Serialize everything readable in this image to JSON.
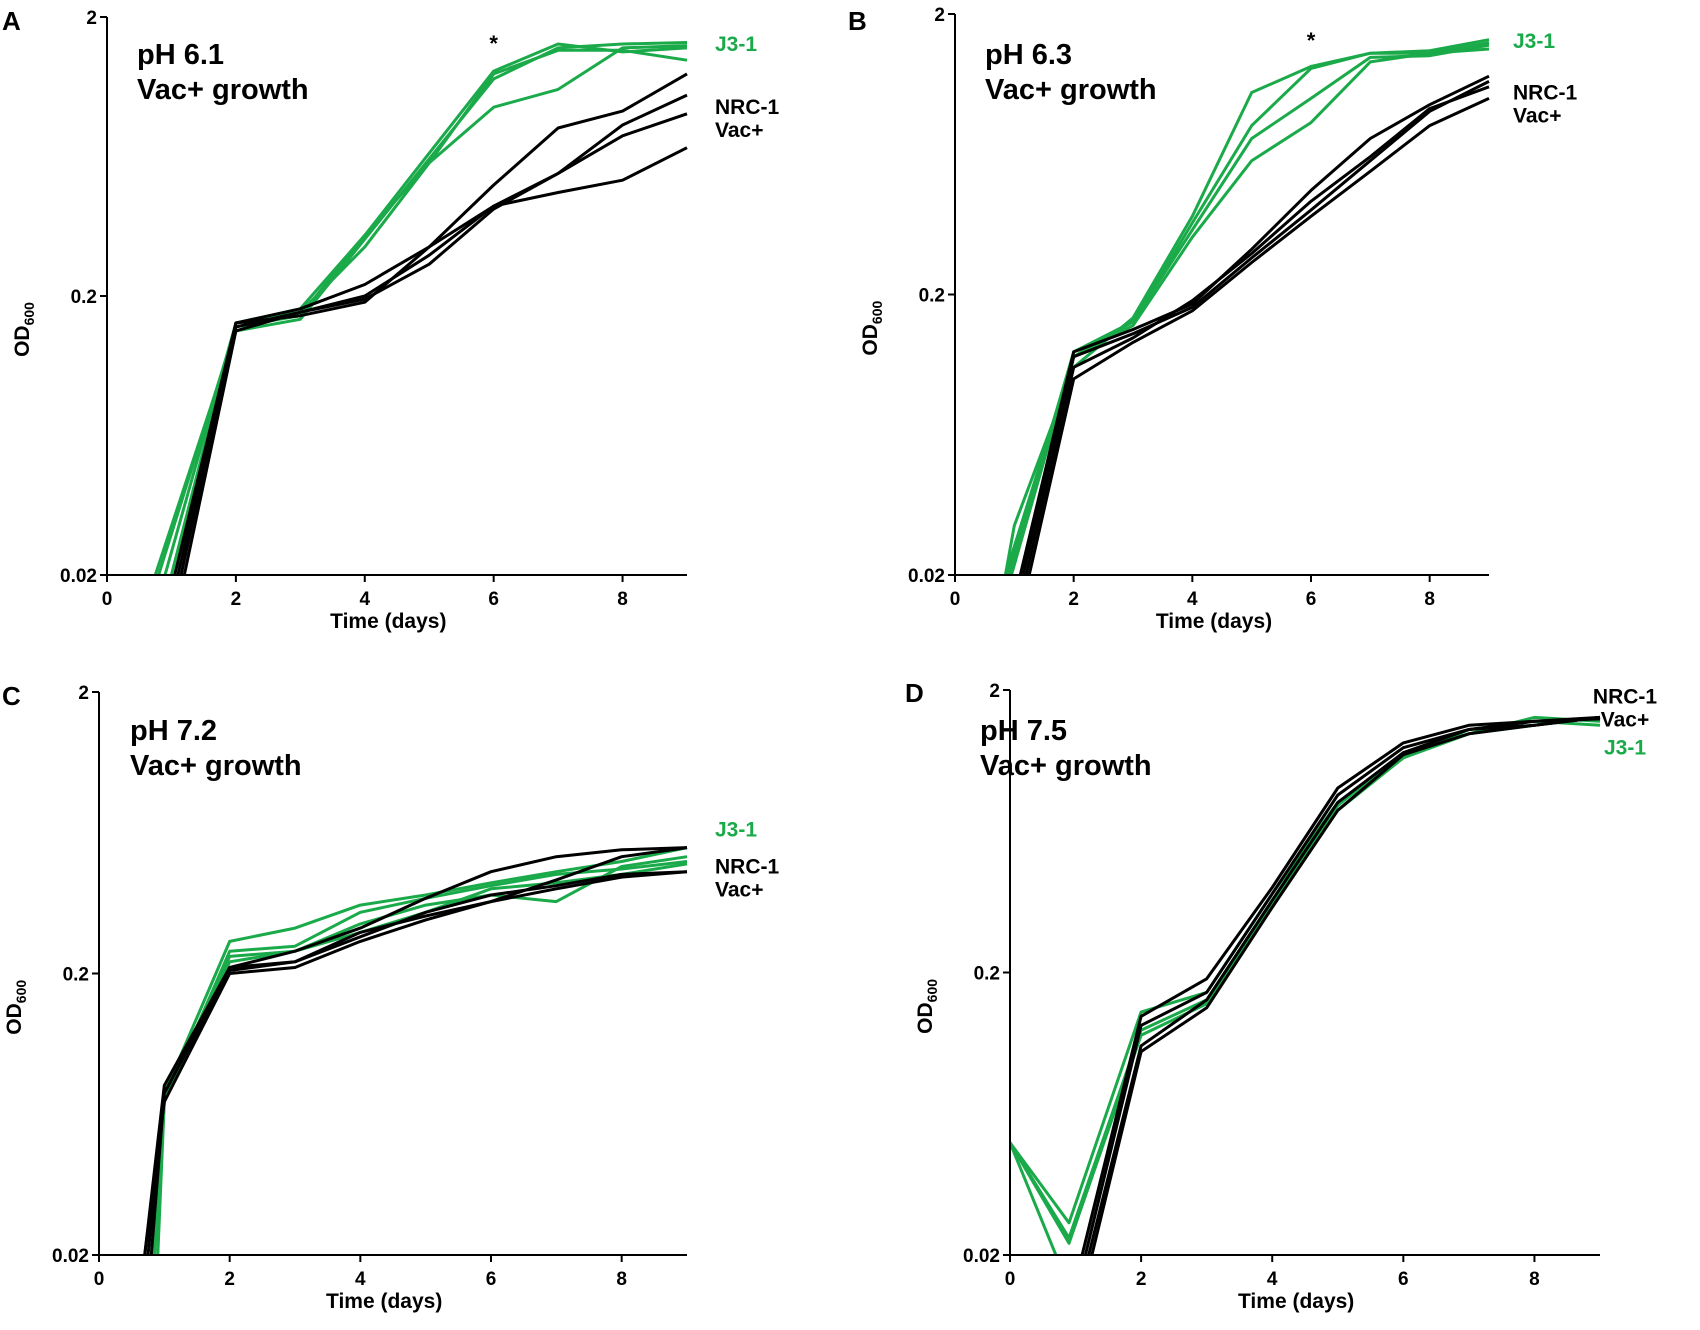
{
  "figure": {
    "panel_letters": [
      "A",
      "B",
      "C",
      "D"
    ]
  },
  "colors": {
    "wt": "#000000",
    "j31": "#1aaa4a",
    "axis": "#000000"
  },
  "chart_data": [
    {
      "panel": "A",
      "type": "line",
      "title_line1": "pH 6.1",
      "title_line2": "Vac+ growth",
      "xlabel": "Time (days)",
      "ylabel_main": "OD",
      "ylabel_sub": "600",
      "xlim": [
        0,
        9
      ],
      "ylim": [
        0.02,
        2
      ],
      "yscale": "log",
      "xticks": [
        0,
        2,
        4,
        6,
        8
      ],
      "xtick_labels": [
        "0",
        "2",
        "4",
        "6",
        "8"
      ],
      "yticks": [
        0.02,
        0.2,
        2
      ],
      "ytick_labels": [
        "0.02",
        "0.2",
        "2"
      ],
      "annotation": {
        "text": "*",
        "x": 6
      },
      "legend": [
        {
          "lines": [
            "J3-1"
          ],
          "color": "j31",
          "y_value": 1.6
        },
        {
          "lines": [
            "NRC-1",
            "Vac+"
          ],
          "color": "wt",
          "y_value": 0.95
        }
      ],
      "series": [
        {
          "name": "J3-1",
          "color": "j31",
          "x": [
            0.75,
            2,
            3,
            4,
            5,
            6,
            7,
            8,
            9
          ],
          "values": [
            0.02,
            0.15,
            0.165,
            0.32,
            0.62,
            1.2,
            1.55,
            1.6,
            1.62
          ]
        },
        {
          "name": "J3-1",
          "color": "j31",
          "x": [
            0.8,
            2,
            3,
            4,
            5,
            6,
            7,
            8,
            9
          ],
          "values": [
            0.02,
            0.155,
            0.17,
            0.33,
            0.65,
            1.28,
            1.6,
            1.5,
            1.55
          ]
        },
        {
          "name": "J3-1",
          "color": "j31",
          "x": [
            0.9,
            2,
            3,
            4,
            5,
            6,
            7,
            8,
            9
          ],
          "values": [
            0.02,
            0.16,
            0.175,
            0.3,
            0.6,
            0.95,
            1.1,
            1.55,
            1.58
          ]
        },
        {
          "name": "J3-1",
          "color": "j31",
          "x": [
            1,
            2,
            3,
            4,
            5,
            6,
            7,
            8,
            9
          ],
          "values": [
            0.02,
            0.16,
            0.18,
            0.33,
            0.6,
            1.25,
            1.52,
            1.52,
            1.4
          ]
        },
        {
          "name": "NRC-1 Vac+",
          "color": "wt",
          "x": [
            1.05,
            2,
            3,
            4,
            5,
            6,
            7,
            8,
            9
          ],
          "values": [
            0.02,
            0.16,
            0.18,
            0.22,
            0.3,
            0.5,
            0.8,
            0.92,
            1.25
          ]
        },
        {
          "name": "NRC-1 Vac+",
          "color": "wt",
          "x": [
            1.1,
            2,
            3,
            4,
            5,
            6,
            7,
            8,
            9
          ],
          "values": [
            0.02,
            0.155,
            0.175,
            0.2,
            0.28,
            0.42,
            0.55,
            0.75,
            0.9
          ]
        },
        {
          "name": "NRC-1 Vac+",
          "color": "wt",
          "x": [
            1.15,
            2,
            3,
            4,
            5,
            6,
            7,
            8,
            9
          ],
          "values": [
            0.02,
            0.16,
            0.17,
            0.19,
            0.3,
            0.42,
            0.47,
            0.52,
            0.68
          ]
        },
        {
          "name": "NRC-1 Vac+",
          "color": "wt",
          "x": [
            1.2,
            2,
            3,
            4,
            5,
            6,
            7,
            8,
            9
          ],
          "values": [
            0.02,
            0.15,
            0.175,
            0.195,
            0.26,
            0.41,
            0.55,
            0.82,
            1.05
          ]
        }
      ]
    },
    {
      "panel": "B",
      "type": "line",
      "title_line1": "pH 6.3",
      "title_line2": "Vac+ growth",
      "xlabel": "Time (days)",
      "ylabel_main": "OD",
      "ylabel_sub": "600",
      "xlim": [
        0,
        9
      ],
      "ylim": [
        0.02,
        2
      ],
      "yscale": "log",
      "xticks": [
        0,
        2,
        4,
        6,
        8
      ],
      "xtick_labels": [
        "0",
        "2",
        "4",
        "6",
        "8"
      ],
      "yticks": [
        0.02,
        0.2,
        2
      ],
      "ytick_labels": [
        "0.02",
        "0.2",
        "2"
      ],
      "annotation": {
        "text": "*",
        "x": 6
      },
      "legend": [
        {
          "lines": [
            "J3-1"
          ],
          "color": "j31",
          "y_value": 1.6
        },
        {
          "lines": [
            "NRC-1",
            "Vac+"
          ],
          "color": "wt",
          "y_value": 1.05
        }
      ],
      "series": [
        {
          "name": "J3-1",
          "color": "j31",
          "x": [
            0.85,
            1,
            2,
            3,
            4,
            5,
            6,
            7,
            8,
            9
          ],
          "values": [
            0.02,
            0.03,
            0.11,
            0.165,
            0.38,
            1.05,
            1.3,
            1.45,
            1.48,
            1.62
          ]
        },
        {
          "name": "J3-1",
          "color": "j31",
          "x": [
            0.85,
            2,
            3,
            4,
            5,
            6,
            7,
            8,
            9
          ],
          "values": [
            0.02,
            0.12,
            0.16,
            0.36,
            0.8,
            1.28,
            1.45,
            1.45,
            1.58
          ]
        },
        {
          "name": "J3-1",
          "color": "j31",
          "x": [
            0.9,
            2,
            3,
            4,
            5,
            6,
            7,
            8,
            9
          ],
          "values": [
            0.02,
            0.125,
            0.16,
            0.34,
            0.72,
            1.0,
            1.4,
            1.42,
            1.55
          ]
        },
        {
          "name": "J3-1",
          "color": "j31",
          "x": [
            0.95,
            2,
            3,
            4,
            5,
            6,
            7,
            8,
            9
          ],
          "values": [
            0.02,
            0.12,
            0.155,
            0.32,
            0.6,
            0.82,
            1.35,
            1.45,
            1.5
          ]
        },
        {
          "name": "NRC-1 Vac+",
          "color": "wt",
          "x": [
            1.1,
            2,
            3,
            4,
            5,
            6,
            7,
            8,
            9
          ],
          "values": [
            0.02,
            0.125,
            0.15,
            0.185,
            0.29,
            0.47,
            0.72,
            0.95,
            1.2
          ]
        },
        {
          "name": "NRC-1 Vac+",
          "color": "wt",
          "x": [
            1.15,
            2,
            3,
            4,
            5,
            6,
            7,
            8,
            9
          ],
          "values": [
            0.02,
            0.12,
            0.145,
            0.18,
            0.27,
            0.4,
            0.6,
            0.9,
            1.15
          ]
        },
        {
          "name": "NRC-1 Vac+",
          "color": "wt",
          "x": [
            1.2,
            2,
            3,
            4,
            5,
            6,
            7,
            8,
            9
          ],
          "values": [
            0.02,
            0.11,
            0.14,
            0.19,
            0.28,
            0.43,
            0.62,
            0.92,
            1.1
          ]
        },
        {
          "name": "NRC-1 Vac+",
          "color": "wt",
          "x": [
            1.25,
            2,
            3,
            4,
            5,
            6,
            7,
            8,
            9
          ],
          "values": [
            0.02,
            0.1,
            0.135,
            0.175,
            0.26,
            0.38,
            0.55,
            0.8,
            1.0
          ]
        }
      ]
    },
    {
      "panel": "C",
      "type": "line",
      "title_line1": "pH 7.2",
      "title_line2": "Vac+ growth",
      "xlabel": "Time (days)",
      "ylabel_main": "OD",
      "ylabel_sub": "600",
      "xlim": [
        0,
        9
      ],
      "ylim": [
        0.02,
        2
      ],
      "yscale": "log",
      "xticks": [
        0,
        2,
        4,
        6,
        8
      ],
      "xtick_labels": [
        "0",
        "2",
        "4",
        "6",
        "8"
      ],
      "yticks": [
        0.02,
        0.2,
        2
      ],
      "ytick_labels": [
        "0.02",
        "0.2",
        "2"
      ],
      "annotation": null,
      "legend": [
        {
          "lines": [
            "J3-1"
          ],
          "color": "j31",
          "y_value": 0.65
        },
        {
          "lines": [
            "NRC-1",
            "Vac+"
          ],
          "color": "wt",
          "y_value": 0.48
        }
      ],
      "series": [
        {
          "name": "J3-1",
          "color": "j31",
          "x": [
            0.8,
            1,
            2,
            3,
            4,
            5,
            6,
            7,
            8,
            9
          ],
          "values": [
            0.02,
            0.075,
            0.26,
            0.29,
            0.35,
            0.38,
            0.42,
            0.46,
            0.5,
            0.56
          ]
        },
        {
          "name": "J3-1",
          "color": "j31",
          "x": [
            0.85,
            1,
            2,
            3,
            4,
            5,
            6,
            7,
            8,
            9
          ],
          "values": [
            0.02,
            0.07,
            0.24,
            0.25,
            0.33,
            0.37,
            0.41,
            0.45,
            0.47,
            0.5
          ]
        },
        {
          "name": "J3-1",
          "color": "j31",
          "x": [
            0.9,
            1,
            2,
            3,
            4,
            5,
            6,
            7,
            8,
            9
          ],
          "values": [
            0.02,
            0.07,
            0.23,
            0.24,
            0.3,
            0.35,
            0.38,
            0.36,
            0.48,
            0.52
          ]
        },
        {
          "name": "J3-1",
          "color": "j31",
          "x": [
            0.85,
            1,
            2,
            3,
            4,
            5,
            6,
            7,
            8,
            9
          ],
          "values": [
            0.02,
            0.07,
            0.22,
            0.24,
            0.28,
            0.33,
            0.4,
            0.42,
            0.45,
            0.49
          ]
        },
        {
          "name": "NRC-1 Vac+",
          "color": "wt",
          "x": [
            0.7,
            1,
            2,
            3,
            4,
            5,
            6,
            7,
            8,
            9
          ],
          "values": [
            0.02,
            0.08,
            0.21,
            0.24,
            0.29,
            0.37,
            0.46,
            0.52,
            0.55,
            0.56
          ]
        },
        {
          "name": "NRC-1 Vac+",
          "color": "wt",
          "x": [
            0.75,
            1,
            2,
            3,
            4,
            5,
            6,
            7,
            8,
            9
          ],
          "values": [
            0.02,
            0.075,
            0.21,
            0.22,
            0.28,
            0.32,
            0.36,
            0.43,
            0.52,
            0.56
          ]
        },
        {
          "name": "NRC-1 Vac+",
          "color": "wt",
          "x": [
            0.8,
            1,
            2,
            3,
            4,
            5,
            6,
            7,
            8,
            9
          ],
          "values": [
            0.02,
            0.075,
            0.205,
            0.22,
            0.27,
            0.33,
            0.38,
            0.41,
            0.45,
            0.46
          ]
        },
        {
          "name": "NRC-1 Vac+",
          "color": "wt",
          "x": [
            0.7,
            1,
            2,
            3,
            4,
            5,
            6,
            7,
            8,
            9
          ],
          "values": [
            0.02,
            0.07,
            0.2,
            0.21,
            0.26,
            0.31,
            0.36,
            0.4,
            0.44,
            0.46
          ]
        }
      ]
    },
    {
      "panel": "D",
      "type": "line",
      "title_line1": "pH 7.5",
      "title_line2": "Vac+ growth",
      "xlabel": "Time (days)",
      "ylabel_main": "OD",
      "ylabel_sub": "600",
      "xlim": [
        0,
        9
      ],
      "ylim": [
        0.02,
        2
      ],
      "yscale": "log",
      "xticks": [
        0,
        2,
        4,
        6,
        8
      ],
      "xtick_labels": [
        "0",
        "2",
        "4",
        "6",
        "8"
      ],
      "yticks": [
        0.02,
        0.2,
        2
      ],
      "ytick_labels": [
        "0.02",
        "0.2",
        "2"
      ],
      "annotation": null,
      "legend": [
        {
          "lines": [
            "NRC-1",
            "Vac+"
          ],
          "color": "wt",
          "y_value": 1.9
        },
        {
          "lines": [
            "J3-1"
          ],
          "color": "j31",
          "y_value": 1.25
        }
      ],
      "series": [
        {
          "name": "J3-1",
          "color": "j31",
          "x": [
            0,
            0.9,
            2,
            3,
            4,
            5,
            6,
            7,
            8,
            9
          ],
          "values": [
            0.05,
            0.026,
            0.145,
            0.17,
            0.38,
            0.8,
            1.15,
            1.45,
            1.55,
            1.5
          ]
        },
        {
          "name": "J3-1",
          "color": "j31",
          "x": [
            0,
            0.9,
            2,
            3,
            4,
            5,
            6,
            7,
            8,
            9
          ],
          "values": [
            0.05,
            0.023,
            0.125,
            0.16,
            0.36,
            0.78,
            1.2,
            1.4,
            1.6,
            1.55
          ]
        },
        {
          "name": "J3-1",
          "color": "j31",
          "x": [
            0,
            0.9,
            2,
            3,
            4,
            5,
            6,
            7,
            8,
            9
          ],
          "values": [
            0.05,
            0.022,
            0.12,
            0.155,
            0.35,
            0.75,
            1.15,
            1.4,
            1.5,
            1.6
          ]
        },
        {
          "name": "J3-1",
          "color": "j31",
          "x": [
            0,
            0.7
          ],
          "values": [
            0.05,
            0.02
          ]
        },
        {
          "name": "NRC-1 Vac+",
          "color": "wt",
          "x": [
            1.1,
            2,
            3,
            4,
            5,
            6,
            7,
            8,
            9
          ],
          "values": [
            0.02,
            0.14,
            0.19,
            0.4,
            0.9,
            1.3,
            1.5,
            1.55,
            1.6
          ]
        },
        {
          "name": "NRC-1 Vac+",
          "color": "wt",
          "x": [
            1.15,
            2,
            3,
            4,
            5,
            6,
            7,
            8,
            9
          ],
          "values": [
            0.02,
            0.13,
            0.17,
            0.38,
            0.85,
            1.25,
            1.45,
            1.5,
            1.6
          ]
        },
        {
          "name": "NRC-1 Vac+",
          "color": "wt",
          "x": [
            1.2,
            2,
            3,
            4,
            5,
            6,
            7,
            8,
            9
          ],
          "values": [
            0.02,
            0.11,
            0.16,
            0.36,
            0.8,
            1.2,
            1.45,
            1.55,
            1.58
          ]
        },
        {
          "name": "NRC-1 Vac+",
          "color": "wt",
          "x": [
            1.25,
            2,
            3,
            4,
            5,
            6,
            7,
            8,
            9
          ],
          "values": [
            0.02,
            0.105,
            0.15,
            0.34,
            0.75,
            1.18,
            1.4,
            1.5,
            1.6
          ]
        }
      ]
    }
  ]
}
